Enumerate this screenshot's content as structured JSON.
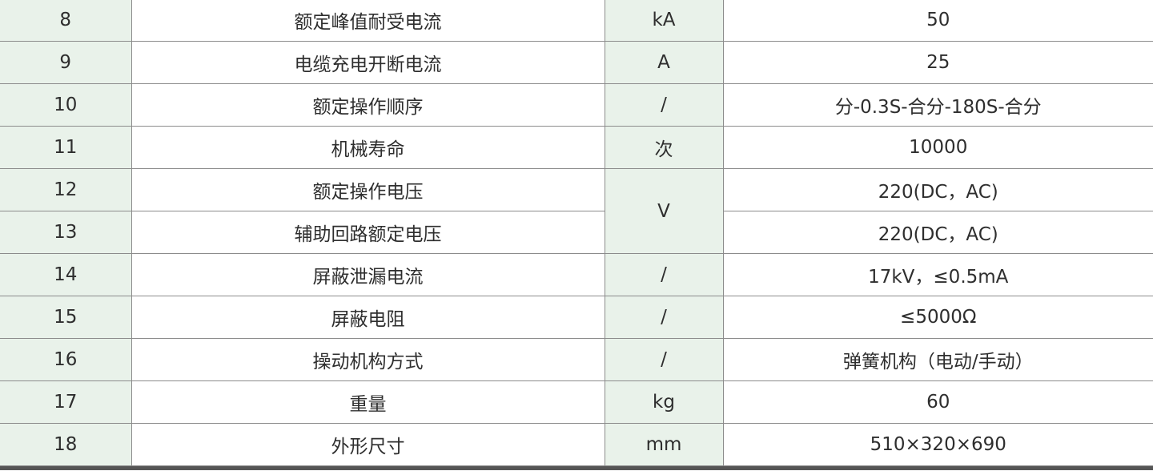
{
  "colors": {
    "label_bg": "#e9f2ea",
    "border": "#8c8c8c",
    "text": "#2e2e2e"
  },
  "rows": [
    {
      "no": "8",
      "name": "额定峰值耐受电流",
      "unit": "kA",
      "value": "50"
    },
    {
      "no": "9",
      "name": "电缆充电开断电流",
      "unit": "A",
      "value": "25"
    },
    {
      "no": "10",
      "name": "额定操作顺序",
      "unit": "/",
      "value": "分-0.3S-合分-180S-合分"
    },
    {
      "no": "11",
      "name": "机械寿命",
      "unit": "次",
      "value": "10000"
    },
    {
      "no": "12",
      "name": "额定操作电压",
      "unit": "V",
      "unit_rowspan": 2,
      "value": "220(DC，AC)"
    },
    {
      "no": "13",
      "name": "辅助回路额定电压",
      "unit": null,
      "value": "220(DC，AC)"
    },
    {
      "no": "14",
      "name": "屏蔽泄漏电流",
      "unit": "/",
      "value": "17kV，≤0.5mA"
    },
    {
      "no": "15",
      "name": "屏蔽电阻",
      "unit": "/",
      "value": "≤5000Ω"
    },
    {
      "no": "16",
      "name": "操动机构方式",
      "unit": "/",
      "value": "弹簧机构（电动/手动）"
    },
    {
      "no": "17",
      "name": "重量",
      "unit": "kg",
      "value": "60"
    },
    {
      "no": "18",
      "name": "外形尺寸",
      "unit": "mm",
      "value": "510×320×690"
    }
  ]
}
